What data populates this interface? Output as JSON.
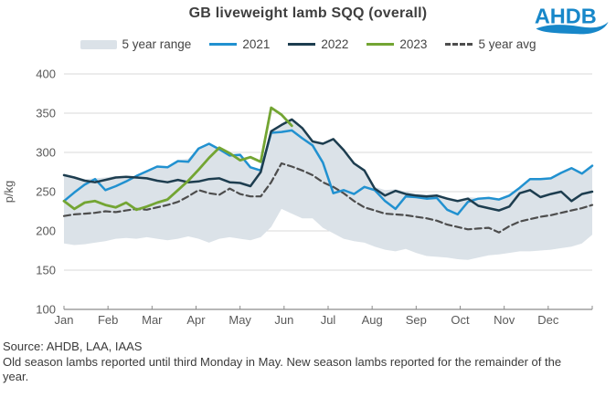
{
  "header": {
    "title": "GB liveweight lamb SQQ (overall)",
    "logo_text": "AHDB"
  },
  "legend": {
    "items": [
      {
        "label": "5 year range",
        "type": "band",
        "color": "#dbe2e8"
      },
      {
        "label": "2021",
        "type": "line",
        "color": "#2191d0"
      },
      {
        "label": "2022",
        "type": "line",
        "color": "#1d3d4f"
      },
      {
        "label": "2023",
        "type": "line",
        "color": "#73a533"
      },
      {
        "label": "5 year avg",
        "type": "dashed",
        "color": "#4d4d4d"
      }
    ]
  },
  "footer": {
    "source": "Source: AHDB, LAA, IAAS",
    "note": "Old season lambs reported until third Monday in May. New season lambs reported for the remainder of the year."
  },
  "chart_data": {
    "type": "line",
    "title": "GB liveweight lamb SQQ (overall)",
    "ylabel": "p/kg",
    "ylim": [
      100,
      400
    ],
    "yticks": [
      100,
      150,
      200,
      250,
      300,
      350,
      400
    ],
    "x_months": [
      "Jan",
      "Feb",
      "Mar",
      "Apr",
      "May",
      "Jun",
      "Jul",
      "Aug",
      "Sep",
      "Oct",
      "Nov",
      "Dec"
    ],
    "x_unit": "week",
    "weeks": 52,
    "grid": "horizontal",
    "legend_position": "top",
    "colors": {
      "band": "#dbe2e8",
      "grid": "#d9d9d9",
      "axis": "#8c8c8c",
      "tick_text": "#595959",
      "y2021": "#2191d0",
      "y2022": "#1d3d4f",
      "y2023": "#73a533",
      "avg": "#4d4d4d"
    },
    "band": {
      "name": "5 year range",
      "upper": [
        272,
        269,
        266,
        267,
        268,
        270,
        270,
        269,
        277,
        283,
        282,
        290,
        292,
        306,
        312,
        305,
        297,
        298,
        282,
        278,
        328,
        336,
        343,
        332,
        315,
        312,
        318,
        304,
        287,
        278,
        256,
        252,
        253,
        250,
        247,
        246,
        246,
        243,
        240,
        243,
        242,
        243,
        241,
        246,
        256,
        267,
        267,
        268,
        275,
        281,
        274,
        284
      ],
      "lower": [
        184,
        182,
        183,
        185,
        187,
        190,
        191,
        190,
        192,
        190,
        188,
        190,
        193,
        190,
        185,
        190,
        192,
        190,
        188,
        192,
        205,
        228,
        222,
        216,
        216,
        204,
        197,
        190,
        187,
        185,
        180,
        176,
        174,
        177,
        172,
        168,
        167,
        166,
        164,
        163,
        166,
        169,
        170,
        172,
        174,
        174,
        175,
        176,
        178,
        180,
        184,
        195
      ]
    },
    "series": [
      {
        "name": "2021",
        "color": "#2191d0",
        "dash": null,
        "width": 2.5,
        "values": [
          238,
          249,
          259,
          266,
          252,
          257,
          263,
          270,
          276,
          282,
          281,
          289,
          288,
          305,
          311,
          304,
          296,
          297,
          281,
          277,
          325,
          326,
          328,
          318,
          309,
          287,
          248,
          252,
          247,
          256,
          252,
          238,
          228,
          244,
          243,
          241,
          242,
          227,
          221,
          237,
          241,
          242,
          240,
          245,
          255,
          266,
          266,
          267,
          274,
          280,
          273,
          283
        ]
      },
      {
        "name": "2022",
        "color": "#1d3d4f",
        "dash": null,
        "width": 2.5,
        "values": [
          271,
          268,
          264,
          262,
          265,
          268,
          269,
          268,
          267,
          264,
          262,
          265,
          262,
          263,
          266,
          267,
          262,
          261,
          257,
          275,
          327,
          335,
          342,
          331,
          314,
          311,
          317,
          303,
          286,
          277,
          254,
          245,
          251,
          247,
          245,
          244,
          245,
          241,
          238,
          241,
          232,
          229,
          226,
          231,
          248,
          252,
          243,
          247,
          250,
          238,
          247,
          250
        ]
      },
      {
        "name": "2023",
        "color": "#73a533",
        "dash": null,
        "width": 2.8,
        "values": [
          238,
          228,
          236,
          238,
          233,
          230,
          236,
          227,
          231,
          236,
          240,
          252,
          264,
          278,
          293,
          306,
          299,
          290,
          294,
          288,
          357,
          348,
          334
        ]
      },
      {
        "name": "5 year avg",
        "color": "#4d4d4d",
        "dash": "7 4",
        "width": 2.2,
        "values": [
          219,
          221,
          222,
          223,
          225,
          224,
          226,
          228,
          227,
          230,
          233,
          237,
          244,
          252,
          248,
          246,
          254,
          247,
          244,
          244,
          262,
          286,
          282,
          277,
          271,
          262,
          256,
          248,
          238,
          230,
          226,
          222,
          221,
          220,
          218,
          216,
          213,
          208,
          205,
          202,
          203,
          204,
          198,
          206,
          212,
          215,
          218,
          220,
          223,
          226,
          229,
          233
        ]
      }
    ]
  }
}
